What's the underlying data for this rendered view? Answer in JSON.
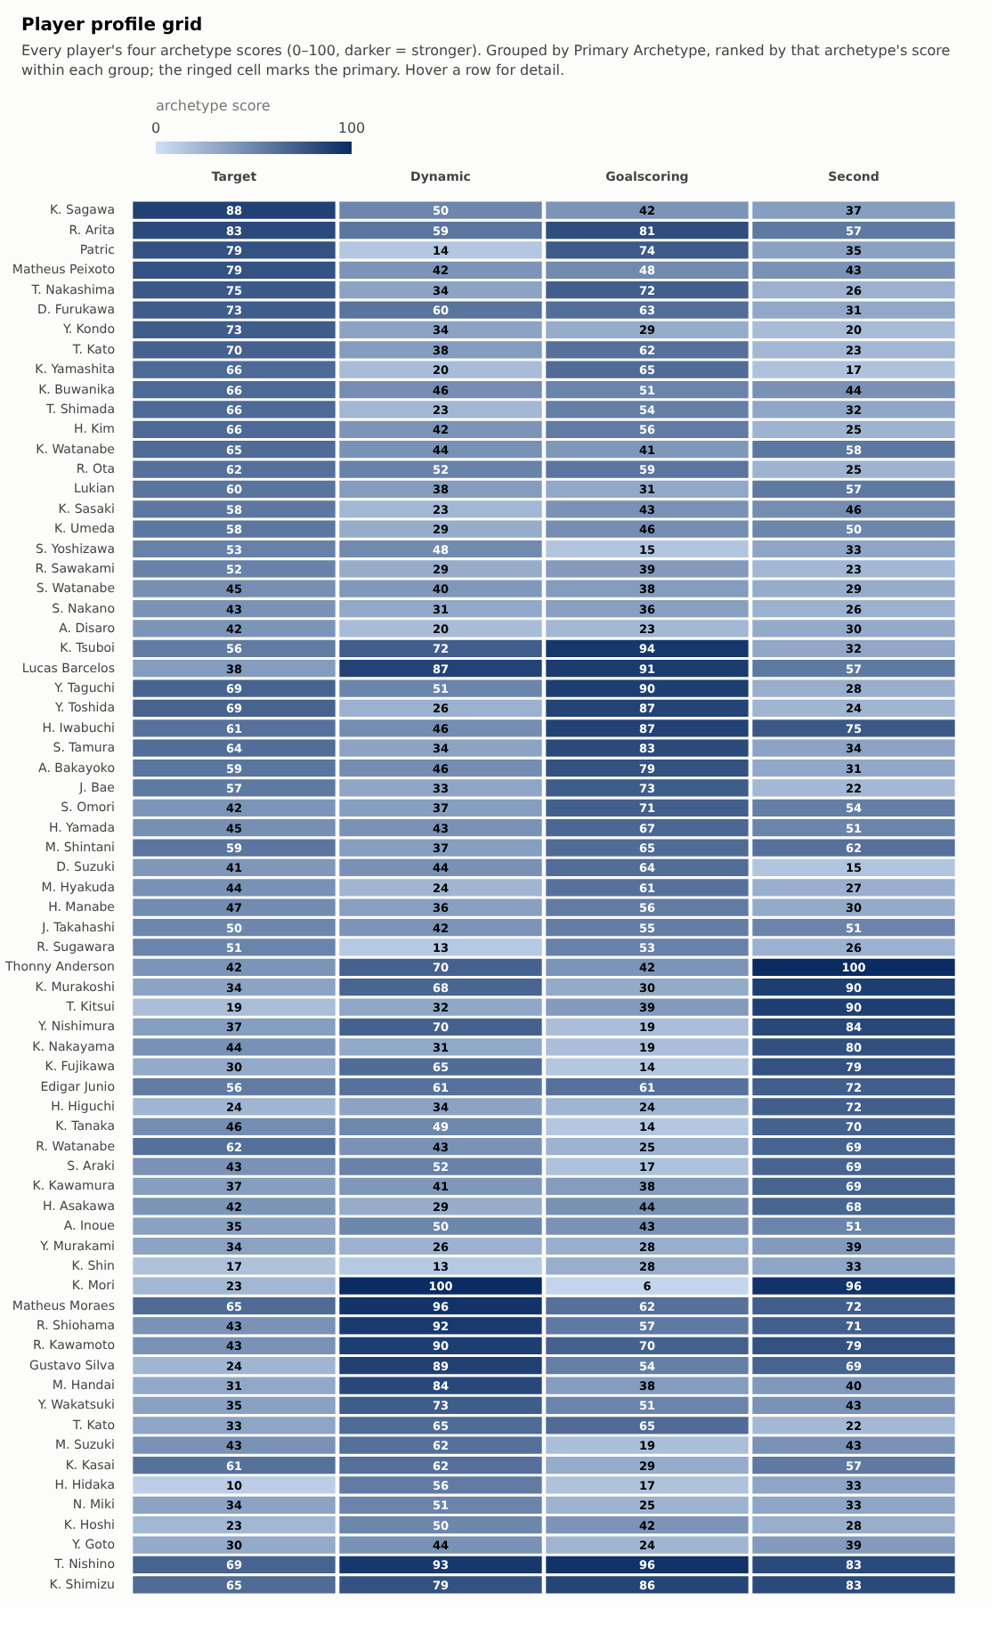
{
  "chart_data": {
    "type": "heatmap",
    "title": "Player profile grid",
    "subtitle": "Every player's four archetype scores (0–100, darker = stronger). Grouped by Primary Archetype, ranked by that archetype's score within each group; the ringed cell marks the primary. Hover a row for detail.",
    "clabel": "archetype score",
    "clim": [
      0,
      100
    ],
    "cticks": [
      0,
      100
    ],
    "data_labels": true,
    "grid": false,
    "categories": [
      "Target",
      "Dynamic",
      "Goalscoring",
      "Second"
    ],
    "y_categories": [
      "K. Sagawa",
      "R. Arita",
      "Patric",
      "Matheus Peixoto",
      "T. Nakashima",
      "D. Furukawa",
      "Y. Kondo",
      "T. Kato",
      "K. Yamashita",
      "K. Buwanika",
      "T. Shimada",
      "H. Kim",
      "K. Watanabe",
      "R. Ota",
      "Lukian",
      "K. Sasaki",
      "K. Umeda",
      "S. Yoshizawa",
      "R. Sawakami",
      "S. Watanabe",
      "S. Nakano",
      "A. Disaro",
      "K. Tsuboi",
      "Lucas Barcelos",
      "Y. Taguchi",
      "Y. Toshida",
      "H. Iwabuchi",
      "S. Tamura",
      "A. Bakayoko",
      "J. Bae",
      "S. Omori",
      "H. Yamada",
      "M. Shintani",
      "D. Suzuki",
      "M. Hyakuda",
      "H. Manabe",
      "J. Takahashi",
      "R. Sugawara",
      "Thonny Anderson",
      "K. Murakoshi",
      "T. Kitsui",
      "Y. Nishimura",
      "K. Nakayama",
      "K. Fujikawa",
      "Edigar Junio",
      "H. Higuchi",
      "K. Tanaka",
      "R. Watanabe",
      "S. Araki",
      "K. Kawamura",
      "H. Asakawa",
      "A. Inoue",
      "Y. Murakami",
      "K. Shin",
      "K. Mori",
      "Matheus Moraes",
      "R. Shiohama",
      "R. Kawamoto",
      "Gustavo Silva",
      "M. Handai",
      "Y. Wakatsuki",
      "T. Kato",
      "M. Suzuki",
      "K. Kasai",
      "H. Hidaka",
      "N. Miki",
      "K. Hoshi",
      "Y. Goto",
      "T. Nishino",
      "K. Shimizu"
    ],
    "cells": [
      [
        88,
        50,
        42,
        37
      ],
      [
        83,
        59,
        81,
        57
      ],
      [
        79,
        14,
        74,
        35
      ],
      [
        79,
        42,
        48,
        43
      ],
      [
        75,
        34,
        72,
        26
      ],
      [
        73,
        60,
        63,
        31
      ],
      [
        73,
        34,
        29,
        20
      ],
      [
        70,
        38,
        62,
        23
      ],
      [
        66,
        20,
        65,
        17
      ],
      [
        66,
        46,
        51,
        44
      ],
      [
        66,
        23,
        54,
        32
      ],
      [
        66,
        42,
        56,
        25
      ],
      [
        65,
        44,
        41,
        58
      ],
      [
        62,
        52,
        59,
        25
      ],
      [
        60,
        38,
        31,
        57
      ],
      [
        58,
        23,
        43,
        46
      ],
      [
        58,
        29,
        46,
        50
      ],
      [
        53,
        48,
        15,
        33
      ],
      [
        52,
        29,
        39,
        23
      ],
      [
        45,
        40,
        38,
        29
      ],
      [
        43,
        31,
        36,
        26
      ],
      [
        42,
        20,
        23,
        30
      ],
      [
        56,
        72,
        94,
        32
      ],
      [
        38,
        87,
        91,
        57
      ],
      [
        69,
        51,
        90,
        28
      ],
      [
        69,
        26,
        87,
        24
      ],
      [
        61,
        46,
        87,
        75
      ],
      [
        64,
        34,
        83,
        34
      ],
      [
        59,
        46,
        79,
        31
      ],
      [
        57,
        33,
        73,
        22
      ],
      [
        42,
        37,
        71,
        54
      ],
      [
        45,
        43,
        67,
        51
      ],
      [
        59,
        37,
        65,
        62
      ],
      [
        41,
        44,
        64,
        15
      ],
      [
        44,
        24,
        61,
        27
      ],
      [
        47,
        36,
        56,
        30
      ],
      [
        50,
        42,
        55,
        51
      ],
      [
        51,
        13,
        53,
        26
      ],
      [
        42,
        70,
        42,
        100
      ],
      [
        34,
        68,
        30,
        90
      ],
      [
        19,
        32,
        39,
        90
      ],
      [
        37,
        70,
        19,
        84
      ],
      [
        44,
        31,
        19,
        80
      ],
      [
        30,
        65,
        14,
        79
      ],
      [
        56,
        61,
        61,
        72
      ],
      [
        24,
        34,
        24,
        72
      ],
      [
        46,
        49,
        14,
        70
      ],
      [
        62,
        43,
        25,
        69
      ],
      [
        43,
        52,
        17,
        69
      ],
      [
        37,
        41,
        38,
        69
      ],
      [
        42,
        29,
        44,
        68
      ],
      [
        35,
        50,
        43,
        51
      ],
      [
        34,
        26,
        28,
        39
      ],
      [
        17,
        13,
        28,
        33
      ],
      [
        23,
        100,
        6,
        96
      ],
      [
        65,
        96,
        62,
        72
      ],
      [
        43,
        92,
        57,
        71
      ],
      [
        43,
        90,
        70,
        79
      ],
      [
        24,
        89,
        54,
        69
      ],
      [
        31,
        84,
        38,
        40
      ],
      [
        35,
        73,
        51,
        43
      ],
      [
        33,
        65,
        65,
        22
      ],
      [
        43,
        62,
        19,
        43
      ],
      [
        61,
        62,
        29,
        57
      ],
      [
        10,
        56,
        17,
        33
      ],
      [
        34,
        51,
        25,
        33
      ],
      [
        23,
        50,
        42,
        28
      ],
      [
        30,
        44,
        24,
        39
      ],
      [
        69,
        93,
        96,
        83
      ],
      [
        65,
        79,
        86,
        83
      ]
    ]
  }
}
